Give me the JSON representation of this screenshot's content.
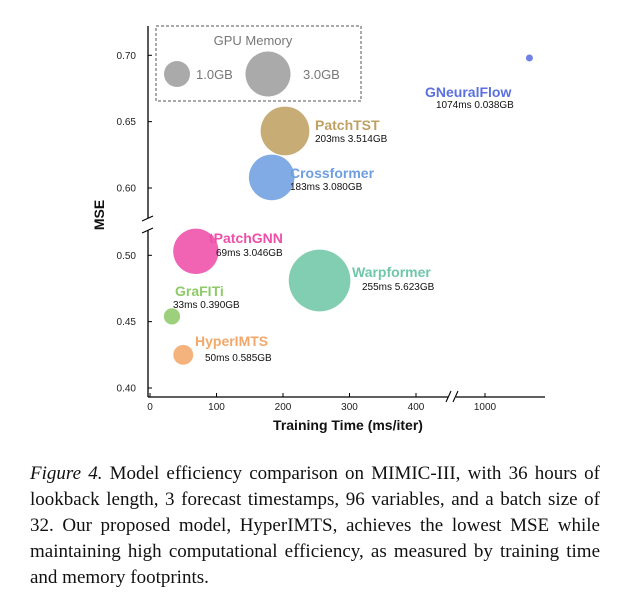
{
  "chart_data": {
    "type": "scatter",
    "xlabel": "Training Time (ms/iter)",
    "ylabel": "MSE",
    "x_ticks": [
      "0",
      "100",
      "200",
      "300",
      "400",
      "1000"
    ],
    "y_ticks": [
      "0.40",
      "0.45",
      "0.50",
      "0.60",
      "0.65",
      "0.70"
    ],
    "xlim": [
      0,
      1100
    ],
    "x_axis_break": [
      430,
      1000
    ],
    "ylim": [
      0.4,
      0.72
    ],
    "y_axis_break": [
      0.52,
      0.58
    ],
    "bubble_size": "GPU memory (GB)",
    "legend": {
      "title": "GPU Memory",
      "placement": "top-left",
      "entries": [
        {
          "label": "1.0GB",
          "memory": 1.0
        },
        {
          "label": "3.0GB",
          "memory": 3.0
        }
      ]
    },
    "points": [
      {
        "name": "GNeuralFlow",
        "stats": "1074ms 0.038GB",
        "x": 1074,
        "y": 0.698,
        "memory": 0.038,
        "color": "#5b6fe0"
      },
      {
        "name": "PatchTST",
        "stats": "203ms 3.514GB",
        "x": 203,
        "y": 0.643,
        "memory": 3.514,
        "color": "#bfa163"
      },
      {
        "name": "Crossformer",
        "stats": "183ms 3.080GB",
        "x": 183,
        "y": 0.608,
        "memory": 3.08,
        "color": "#6f9fe0"
      },
      {
        "name": "tPatchGNN",
        "stats": "69ms 3.046GB",
        "x": 69,
        "y": 0.503,
        "memory": 3.046,
        "color": "#ee4fa8"
      },
      {
        "name": "Warpformer",
        "stats": "255ms 5.623GB",
        "x": 255,
        "y": 0.481,
        "memory": 5.623,
        "color": "#6fc7a8"
      },
      {
        "name": "GraFITi",
        "stats": "33ms 0.390GB",
        "x": 33,
        "y": 0.454,
        "memory": 0.39,
        "color": "#8fca6a"
      },
      {
        "name": "HyperIMTS",
        "stats": "50ms 0.585GB",
        "x": 50,
        "y": 0.425,
        "memory": 0.585,
        "color": "#f2a86a"
      }
    ]
  },
  "caption": {
    "figure_label": "Figure 4.",
    "text": "Model efficiency comparison on MIMIC-III, with 36 hours of lookback length, 3 forecast timestamps, 96 variables, and a batch size of 32. Our proposed model, HyperIMTS, achieves the lowest MSE while maintaining high computational efficiency, as measured by training time and memory footprints."
  }
}
